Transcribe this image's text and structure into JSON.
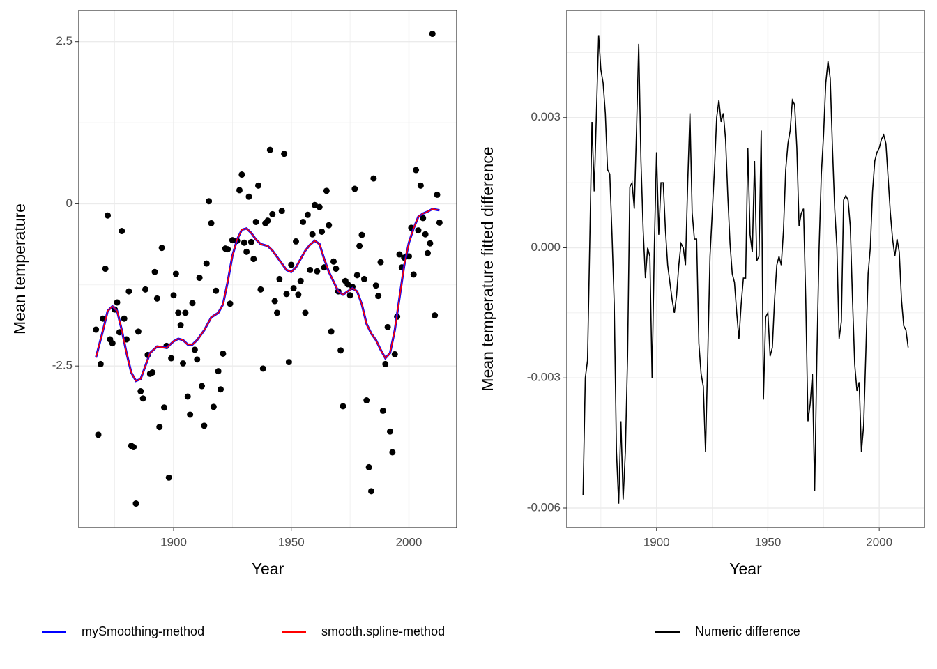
{
  "chart_data": [
    {
      "type": "scatter",
      "x_label": "Year",
      "y_label": "Mean temperature",
      "xlim": [
        1859.7,
        2020.3
      ],
      "xticks": [
        1900,
        1950,
        2000
      ],
      "ylim": [
        -4.99,
        2.98
      ],
      "yticks": [
        -2.5,
        0,
        2.5
      ],
      "grid": true,
      "legend": "bottom",
      "points": {
        "color": "#000000",
        "x": [
          1867,
          1868,
          1869,
          1870,
          1871,
          1872,
          1873,
          1874,
          1875,
          1876,
          1877,
          1878,
          1879,
          1880,
          1881,
          1882,
          1883,
          1884,
          1885,
          1886,
          1887,
          1888,
          1889,
          1890,
          1891,
          1892,
          1893,
          1894,
          1895,
          1896,
          1897,
          1898,
          1899,
          1900,
          1901,
          1902,
          1903,
          1904,
          1905,
          1906,
          1907,
          1908,
          1909,
          1910,
          1911,
          1912,
          1913,
          1914,
          1915,
          1916,
          1917,
          1918,
          1919,
          1920,
          1921,
          1922,
          1923,
          1924,
          1925,
          1927,
          1928,
          1929,
          1930,
          1931,
          1932,
          1933,
          1934,
          1935,
          1936,
          1937,
          1938,
          1939,
          1940,
          1941,
          1942,
          1943,
          1944,
          1945,
          1946,
          1947,
          1948,
          1949,
          1950,
          1951,
          1952,
          1953,
          1954,
          1955,
          1956,
          1957,
          1958,
          1959,
          1960,
          1961,
          1962,
          1963,
          1964,
          1965,
          1966,
          1967,
          1968,
          1969,
          1970,
          1971,
          1972,
          1973,
          1974,
          1975,
          1976,
          1977,
          1978,
          1979,
          1980,
          1981,
          1982,
          1983,
          1984,
          1985,
          1986,
          1987,
          1988,
          1989,
          1990,
          1991,
          1992,
          1993,
          1994,
          1995,
          1996,
          1997,
          1998,
          1999,
          2000,
          2001,
          2002,
          2003,
          2004,
          2005,
          2006,
          2007,
          2008,
          2009,
          2010,
          2011,
          2012,
          2013
        ],
        "values": [
          -1.94,
          -3.56,
          -2.47,
          -1.77,
          -1.0,
          -0.18,
          -2.09,
          -2.15,
          -1.63,
          -1.52,
          -1.98,
          -0.42,
          -1.77,
          -2.09,
          -1.35,
          -3.73,
          -3.75,
          -4.62,
          -1.97,
          -2.89,
          -3.0,
          -1.32,
          -2.33,
          -2.62,
          -2.6,
          -1.05,
          -1.46,
          -3.44,
          -0.68,
          -3.14,
          -2.19,
          -4.22,
          -2.38,
          -1.41,
          -1.08,
          -1.68,
          -1.87,
          -2.46,
          -1.68,
          -2.97,
          -3.25,
          -1.53,
          -2.25,
          -2.4,
          -1.14,
          -2.81,
          -3.42,
          -0.92,
          0.04,
          -0.3,
          -3.13,
          -1.34,
          -2.58,
          -2.86,
          -2.31,
          -0.69,
          -0.7,
          -1.54,
          -0.56,
          -0.57,
          0.21,
          0.45,
          -0.6,
          -0.74,
          0.11,
          -0.59,
          -0.85,
          -0.28,
          0.28,
          -1.32,
          -2.54,
          -0.3,
          -0.26,
          0.83,
          -0.16,
          -1.5,
          -1.68,
          -1.16,
          -0.11,
          0.77,
          -1.39,
          -2.44,
          -0.94,
          -1.3,
          -0.58,
          -1.4,
          -1.19,
          -0.28,
          -1.68,
          -0.17,
          -1.02,
          -0.47,
          -0.02,
          -1.04,
          -0.05,
          -0.43,
          -0.98,
          0.2,
          -0.33,
          -1.97,
          -0.89,
          -1.0,
          -1.35,
          -2.26,
          -3.12,
          -1.19,
          -1.24,
          -1.41,
          -1.28,
          0.23,
          -1.1,
          -0.65,
          -0.48,
          -1.16,
          -3.03,
          -4.06,
          -4.43,
          0.39,
          -1.26,
          -1.42,
          -0.9,
          -3.19,
          -2.47,
          -1.9,
          -3.51,
          -3.83,
          -2.32,
          -1.74,
          -0.78,
          -0.98,
          -0.83,
          -0.81,
          -0.81,
          -0.37,
          -1.09,
          0.52,
          -0.41,
          0.28,
          -0.22,
          -0.47,
          -0.76,
          -0.61,
          2.62,
          -1.72,
          0.14,
          -0.29
        ]
      },
      "series": [
        {
          "name": "mySmoothing-method",
          "color": "#0000ff",
          "x": [
            1867,
            1870,
            1872,
            1874,
            1876,
            1878,
            1880,
            1882,
            1884,
            1886,
            1888,
            1890,
            1893,
            1897,
            1900,
            1902,
            1904,
            1906,
            1908,
            1910,
            1913,
            1916,
            1919,
            1921,
            1923,
            1925,
            1927,
            1929,
            1931,
            1933,
            1935,
            1937,
            1940,
            1942,
            1945,
            1948,
            1950,
            1952,
            1954,
            1956,
            1958,
            1960,
            1962,
            1964,
            1966,
            1968,
            1970,
            1972,
            1974,
            1976,
            1978,
            1980,
            1982,
            1984,
            1986,
            1988,
            1990,
            1992,
            1994,
            1996,
            1998,
            2000,
            2002,
            2004,
            2006,
            2008,
            2010,
            2013
          ],
          "values": [
            -2.37,
            -1.95,
            -1.65,
            -1.58,
            -1.65,
            -1.95,
            -2.3,
            -2.6,
            -2.73,
            -2.7,
            -2.5,
            -2.3,
            -2.2,
            -2.22,
            -2.12,
            -2.08,
            -2.1,
            -2.17,
            -2.17,
            -2.1,
            -1.95,
            -1.75,
            -1.68,
            -1.55,
            -1.2,
            -0.8,
            -0.55,
            -0.4,
            -0.38,
            -0.45,
            -0.55,
            -0.62,
            -0.65,
            -0.72,
            -0.87,
            -1.02,
            -1.05,
            -0.98,
            -0.85,
            -0.72,
            -0.63,
            -0.57,
            -0.62,
            -0.85,
            -1.05,
            -1.2,
            -1.35,
            -1.4,
            -1.35,
            -1.3,
            -1.35,
            -1.55,
            -1.85,
            -2.0,
            -2.1,
            -2.25,
            -2.38,
            -2.3,
            -1.95,
            -1.45,
            -0.95,
            -0.6,
            -0.38,
            -0.2,
            -0.15,
            -0.12,
            -0.08,
            -0.1
          ]
        },
        {
          "name": "smooth.spline-method",
          "color": "#ff0000",
          "x": [
            1867,
            1870,
            1872,
            1874,
            1876,
            1878,
            1880,
            1882,
            1884,
            1886,
            1888,
            1890,
            1893,
            1897,
            1900,
            1902,
            1904,
            1906,
            1908,
            1910,
            1913,
            1916,
            1919,
            1921,
            1923,
            1925,
            1927,
            1929,
            1931,
            1933,
            1935,
            1937,
            1940,
            1942,
            1945,
            1948,
            1950,
            1952,
            1954,
            1956,
            1958,
            1960,
            1962,
            1964,
            1966,
            1968,
            1970,
            1972,
            1974,
            1976,
            1978,
            1980,
            1982,
            1984,
            1986,
            1988,
            1990,
            1992,
            1994,
            1996,
            1998,
            2000,
            2002,
            2004,
            2006,
            2008,
            2010,
            2013
          ],
          "values": [
            -2.37,
            -1.95,
            -1.65,
            -1.58,
            -1.65,
            -1.95,
            -2.3,
            -2.6,
            -2.73,
            -2.7,
            -2.5,
            -2.3,
            -2.2,
            -2.22,
            -2.12,
            -2.08,
            -2.1,
            -2.17,
            -2.17,
            -2.1,
            -1.95,
            -1.75,
            -1.68,
            -1.55,
            -1.2,
            -0.8,
            -0.55,
            -0.4,
            -0.38,
            -0.45,
            -0.55,
            -0.62,
            -0.65,
            -0.72,
            -0.87,
            -1.02,
            -1.05,
            -0.98,
            -0.85,
            -0.72,
            -0.63,
            -0.57,
            -0.62,
            -0.85,
            -1.05,
            -1.2,
            -1.35,
            -1.4,
            -1.35,
            -1.3,
            -1.35,
            -1.55,
            -1.85,
            -2.0,
            -2.1,
            -2.25,
            -2.38,
            -2.3,
            -1.95,
            -1.45,
            -0.95,
            -0.6,
            -0.38,
            -0.2,
            -0.15,
            -0.12,
            -0.08,
            -0.1
          ]
        }
      ]
    },
    {
      "type": "line",
      "x_label": "Year",
      "y_label": "Mean temperature fitted difference",
      "xlim": [
        1859.7,
        2020.3
      ],
      "xticks": [
        1900,
        1950,
        2000
      ],
      "ylim": [
        -0.00645,
        0.00547
      ],
      "yticks": [
        -0.006,
        -0.003,
        {
          "value": 0,
          "label": "0.000"
        },
        0.003
      ],
      "grid": true,
      "legend": "bottom",
      "x": [
        1867,
        1868,
        1869,
        1870,
        1871,
        1872,
        1873,
        1874,
        1875,
        1876,
        1877,
        1878,
        1879,
        1880,
        1881,
        1882,
        1883,
        1884,
        1885,
        1886,
        1887,
        1888,
        1889,
        1890,
        1891,
        1892,
        1893,
        1894,
        1895,
        1896,
        1897,
        1898,
        1899,
        1900,
        1901,
        1902,
        1903,
        1904,
        1905,
        1906,
        1907,
        1908,
        1909,
        1910,
        1911,
        1912,
        1913,
        1914,
        1915,
        1916,
        1917,
        1918,
        1919,
        1920,
        1921,
        1922,
        1923,
        1924,
        1925,
        1926,
        1927,
        1928,
        1929,
        1930,
        1931,
        1932,
        1933,
        1934,
        1935,
        1936,
        1937,
        1938,
        1939,
        1940,
        1941,
        1942,
        1943,
        1944,
        1945,
        1946,
        1947,
        1948,
        1949,
        1950,
        1951,
        1952,
        1953,
        1954,
        1955,
        1956,
        1957,
        1958,
        1959,
        1960,
        1961,
        1962,
        1963,
        1964,
        1965,
        1966,
        1967,
        1968,
        1969,
        1970,
        1971,
        1972,
        1973,
        1974,
        1975,
        1976,
        1977,
        1978,
        1979,
        1980,
        1981,
        1982,
        1983,
        1984,
        1985,
        1986,
        1987,
        1988,
        1989,
        1990,
        1991,
        1992,
        1993,
        1994,
        1995,
        1996,
        1997,
        1998,
        1999,
        2000,
        2001,
        2002,
        2003,
        2004,
        2005,
        2006,
        2007,
        2008,
        2009,
        2010,
        2011,
        2012,
        2013
      ],
      "series": [
        {
          "name": "Numeric difference",
          "color": "#000000",
          "values": [
            -0.0057,
            -0.003,
            -0.0026,
            0.0001,
            0.0029,
            0.0013,
            0.0031,
            0.0049,
            0.0041,
            0.0038,
            0.0031,
            0.0018,
            0.0017,
            0.0003,
            -0.0013,
            -0.0047,
            -0.0059,
            -0.004,
            -0.0058,
            -0.0047,
            -0.0025,
            0.0014,
            0.0015,
            0.0009,
            0.0027,
            0.0047,
            0.002,
            0.0004,
            -0.0007,
            0.0,
            -0.0002,
            -0.003,
            0.0,
            0.0022,
            0.0003,
            0.0015,
            0.0015,
            0.0004,
            -0.0004,
            -0.0008,
            -0.0012,
            -0.0015,
            -0.0011,
            -0.0004,
            0.0001,
            0.0,
            -0.0004,
            0.0015,
            0.0031,
            0.0008,
            0.0002,
            0.0002,
            -0.0022,
            -0.0029,
            -0.0032,
            -0.0047,
            -0.0025,
            -0.0002,
            0.0008,
            0.0018,
            0.003,
            0.0034,
            0.0029,
            0.0031,
            0.0025,
            0.0012,
            0.0001,
            -0.0006,
            -0.0008,
            -0.0015,
            -0.0021,
            -0.0013,
            -0.0007,
            -0.0007,
            0.0023,
            0.0003,
            -0.0001,
            0.002,
            -0.0003,
            -0.0002,
            0.0027,
            -0.0035,
            -0.0016,
            -0.0015,
            -0.0025,
            -0.0023,
            -0.0012,
            -0.0004,
            -0.0002,
            -0.0004,
            0.0004,
            0.0018,
            0.0024,
            0.0027,
            0.0034,
            0.0033,
            0.0023,
            0.0005,
            0.0008,
            0.0009,
            -0.0012,
            -0.004,
            -0.0036,
            -0.0029,
            -0.0056,
            -0.0025,
            0.0,
            0.0017,
            0.0026,
            0.0038,
            0.0043,
            0.0039,
            0.0023,
            0.0009,
            0.0,
            -0.0021,
            -0.0017,
            0.0011,
            0.0012,
            0.0011,
            0.0005,
            -0.0012,
            -0.0027,
            -0.0033,
            -0.0031,
            -0.0047,
            -0.0041,
            -0.0024,
            -0.0006,
            0.0,
            0.0013,
            0.002,
            0.0022,
            0.0023,
            0.0025,
            0.0026,
            0.0024,
            0.0016,
            0.0008,
            0.0002,
            -0.0002,
            0.0002,
            -0.0001,
            -0.0012,
            -0.0018,
            -0.0019,
            -0.0023
          ]
        }
      ]
    }
  ]
}
